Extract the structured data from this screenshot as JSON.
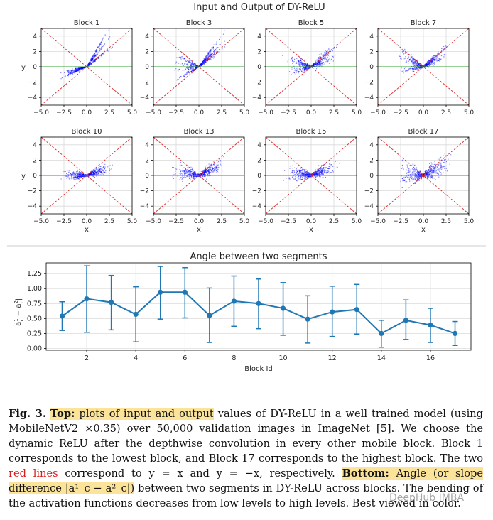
{
  "chart_data": [
    {
      "type": "scatter",
      "title": "Input and Output of DY-ReLU",
      "xlim": [
        -5,
        5
      ],
      "ylim": [
        -5,
        5
      ],
      "xticks": [
        "−5.0",
        "−2.5",
        "0.0",
        "2.5",
        "5.0"
      ],
      "yticks": [
        "4",
        "2",
        "0",
        "−2",
        "−4"
      ],
      "xlabel": "x",
      "ylabel": "y",
      "grid": true,
      "reference_lines": [
        "y = x",
        "y = −x",
        "y = 0"
      ],
      "colors": {
        "points": "#0000ff",
        "diagonals": "#d62728",
        "zero_line": "#2ca02c"
      },
      "subplots": [
        {
          "title": "Block 1",
          "neg_slopes": [
            0.3,
            0.5
          ],
          "pos_slopes": [
            0.9,
            1.5,
            2.0
          ],
          "noise": 0.15
        },
        {
          "title": "Block 3",
          "neg_slopes": [
            -0.6,
            -0.2,
            0.2,
            0.7
          ],
          "pos_slopes": [
            0.9,
            1.2,
            1.6
          ],
          "noise": 0.2
        },
        {
          "title": "Block 5",
          "neg_slopes": [
            -0.4,
            0.3
          ],
          "pos_slopes": [
            0.5,
            1.0
          ],
          "noise": 0.45
        },
        {
          "title": "Block 7",
          "neg_slopes": [
            -0.9,
            -0.5,
            0.2
          ],
          "pos_slopes": [
            0.6,
            1.0
          ],
          "noise": 0.35
        },
        {
          "title": "Block 10",
          "neg_slopes": [
            -0.2,
            0.1
          ],
          "pos_slopes": [
            0.3,
            0.5
          ],
          "noise": 0.35
        },
        {
          "title": "Block 13",
          "neg_slopes": [
            -0.4,
            0.0
          ],
          "pos_slopes": [
            0.4,
            0.7
          ],
          "noise": 0.55
        },
        {
          "title": "Block 15",
          "neg_slopes": [
            -0.3,
            0.1
          ],
          "pos_slopes": [
            0.3,
            0.6
          ],
          "noise": 0.55
        },
        {
          "title": "Block 17",
          "neg_slopes": [
            -0.5,
            0.2
          ],
          "pos_slopes": [
            0.4,
            0.8
          ],
          "noise": 0.8
        }
      ]
    },
    {
      "type": "line",
      "title": "Angle between two segments",
      "xlabel": "Block Id",
      "ylabel": "|a¹_c − a²_c|",
      "xlim": [
        0.35,
        17.65
      ],
      "ylim": [
        -0.03,
        1.43
      ],
      "xticks": [
        2,
        4,
        6,
        8,
        10,
        12,
        14,
        16
      ],
      "yticks": [
        "0.00",
        "0.25",
        "0.50",
        "0.75",
        "1.00",
        "1.25"
      ],
      "grid": true,
      "color": "#1f77b4",
      "x": [
        1,
        2,
        3,
        4,
        5,
        6,
        7,
        8,
        9,
        10,
        11,
        12,
        13,
        14,
        15,
        16,
        17
      ],
      "y": [
        0.54,
        0.83,
        0.77,
        0.57,
        0.94,
        0.94,
        0.55,
        0.79,
        0.75,
        0.67,
        0.49,
        0.61,
        0.65,
        0.25,
        0.47,
        0.39,
        0.25
      ],
      "err_low": [
        0.3,
        0.27,
        0.31,
        0.11,
        0.49,
        0.51,
        0.1,
        0.37,
        0.33,
        0.22,
        0.09,
        0.2,
        0.24,
        0.02,
        0.15,
        0.1,
        0.05
      ],
      "err_high": [
        0.78,
        1.38,
        1.22,
        1.03,
        1.37,
        1.35,
        1.01,
        1.21,
        1.16,
        1.1,
        0.88,
        1.04,
        1.07,
        0.47,
        0.81,
        0.67,
        0.45
      ]
    }
  ],
  "caption": {
    "fig_label": "Fig. 3.",
    "top_label": "Top:",
    "top_text": " plots of input and output",
    "part1": " values of DY-ReLU in a well trained model (using MobileNetV2 ×0.35) over 50,000 validation images in ImageNet [5]. We choose the dynamic ReLU after the depthwise convolution in every other mobile block. Block 1 corresponds to the lowest block, and Block 17 corresponds to the highest block. The two ",
    "red_lines": "red lines",
    "part2": " correspond to y = x and y = −x, respectively. ",
    "bottom_label": "Bottom:",
    "bottom_text": " Angle (or slope difference |a¹_c − a²_c|)",
    "part3": " between two segments in DY-ReLU across blocks. The bending of the activation functions decreases from low levels to high levels. Best viewed in color."
  },
  "watermark": "DeepHub IMBA"
}
